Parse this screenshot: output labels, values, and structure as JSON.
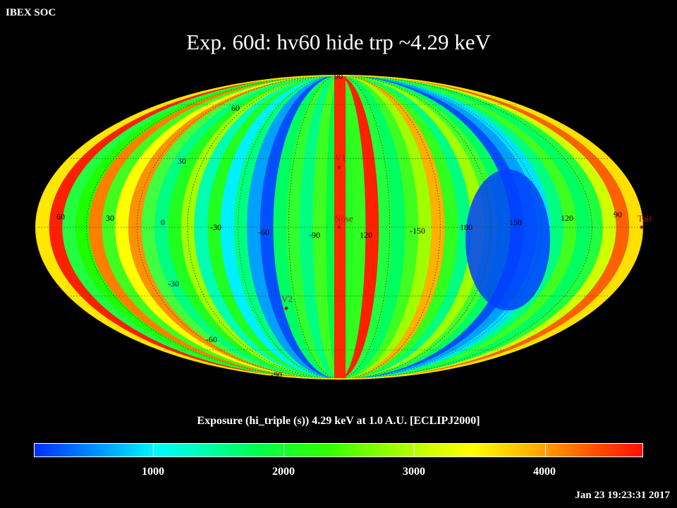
{
  "corner_label": "IBEX SOC",
  "title": "Exp.   60d: hv60 hide trp ~4.29 keV",
  "colorbar": {
    "title": "Exposure (hi_triple (s))  4.29 keV at 1.0 A.U. [ECLIPJ2000]",
    "ticks": [
      "1000",
      "2000",
      "3000",
      "4000"
    ]
  },
  "timestamp": "Jan 23 19:23:31 2017",
  "map": {
    "projection": "Mollweide",
    "lon_labels": [
      "60",
      "30",
      "0",
      "-30",
      "-60",
      "-90",
      "120",
      "-150",
      "180",
      "150",
      "120",
      "90"
    ],
    "lat_labels": [
      "90",
      "60",
      "30",
      "-30",
      "-60",
      "-90"
    ],
    "markers": [
      {
        "name": "V1"
      },
      {
        "name": "Nose"
      },
      {
        "name": "V2"
      },
      {
        "name": "Tail"
      }
    ]
  }
}
